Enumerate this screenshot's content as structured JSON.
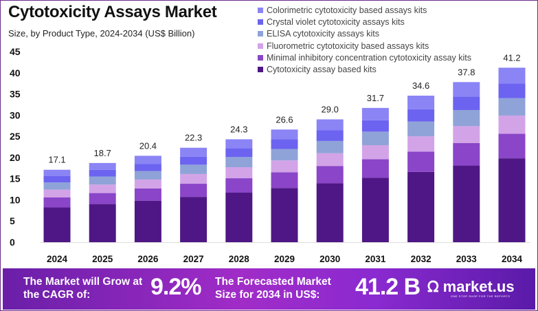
{
  "chart_data": {
    "type": "bar",
    "stacked": true,
    "title": "Cytotoxicity Assays Market",
    "subtitle": "Size, by Product Type, 2024-2034  (US$ Billion)",
    "categories": [
      "2024",
      "2025",
      "2026",
      "2027",
      "2028",
      "2029",
      "2030",
      "2031",
      "2032",
      "2033",
      "2034"
    ],
    "totals": [
      "17.1",
      "18.7",
      "20.4",
      "22.3",
      "24.3",
      "26.6",
      "29.0",
      "31.7",
      "34.6",
      "37.8",
      "41.2"
    ],
    "ylim": [
      0,
      45
    ],
    "yticks": [
      "0",
      "5",
      "10",
      "15",
      "20",
      "25",
      "30",
      "35",
      "40",
      "45"
    ],
    "grid": false,
    "legend_position": "top-right",
    "series": [
      {
        "name": "Cytotoxicity assay based kits",
        "color": "#4e1785",
        "values": [
          8.2,
          9.0,
          9.8,
          10.7,
          11.7,
          12.8,
          13.9,
          15.2,
          16.6,
          18.1,
          19.8
        ]
      },
      {
        "name": "Minimal inhibitory concentration cytotoxicity assay kits",
        "color": "#8a45c8",
        "values": [
          2.4,
          2.6,
          2.9,
          3.1,
          3.4,
          3.7,
          4.1,
          4.4,
          4.8,
          5.3,
          5.8
        ]
      },
      {
        "name": "Fluorometric cytotoxicity based assays kits",
        "color": "#d3a3e8",
        "values": [
          1.8,
          2.0,
          2.1,
          2.3,
          2.6,
          2.8,
          3.0,
          3.3,
          3.6,
          4.0,
          4.3
        ]
      },
      {
        "name": "ELISA cytotoxicity assays kits",
        "color": "#8fa3d8",
        "values": [
          1.7,
          1.9,
          2.0,
          2.2,
          2.4,
          2.7,
          2.9,
          3.2,
          3.5,
          3.8,
          4.1
        ]
      },
      {
        "name": "Crystal violet cytotoxicity assays kits",
        "color": "#6c63f0",
        "values": [
          1.5,
          1.6,
          1.7,
          1.9,
          2.1,
          2.3,
          2.5,
          2.7,
          2.9,
          3.2,
          3.5
        ]
      },
      {
        "name": "Colorimetric cytotoxicity based assays kits",
        "color": "#8a84f5",
        "values": [
          1.5,
          1.6,
          1.9,
          2.1,
          2.1,
          2.3,
          2.6,
          2.9,
          3.2,
          3.4,
          3.7
        ]
      }
    ]
  },
  "banner": {
    "cagr_label": "The Market will Grow at the CAGR of:",
    "cagr_value": "9.2%",
    "forecast_label": "The Forecasted Market Size for 2034 in US$:",
    "forecast_value": "41.2 B",
    "brand": "market.us",
    "brand_tagline": "ONE STOP SHOP FOR THE REPORTS"
  }
}
